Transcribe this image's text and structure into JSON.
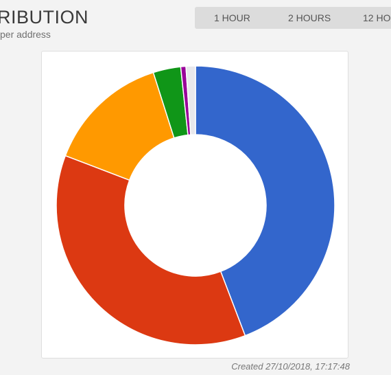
{
  "header": {
    "title": "RIBUTION",
    "subtitle": "per address"
  },
  "range_tabs": [
    {
      "label": "1 HOUR"
    },
    {
      "label": "2 HOURS"
    },
    {
      "label": "12 HO"
    }
  ],
  "footer": {
    "created": "Created 27/10/2018, 17:17:48"
  },
  "chart_data": {
    "type": "pie",
    "donut": true,
    "title": "",
    "legend": "none",
    "slices": [
      {
        "value": 44.2,
        "color": "#3366cc"
      },
      {
        "value": 36.6,
        "color": "#dc3912"
      },
      {
        "value": 14.3,
        "color": "#ff9900"
      },
      {
        "value": 3.2,
        "color": "#109618"
      },
      {
        "value": 0.6,
        "color": "#990099"
      },
      {
        "value": 1.1,
        "color": "#e8e8ec"
      }
    ]
  }
}
